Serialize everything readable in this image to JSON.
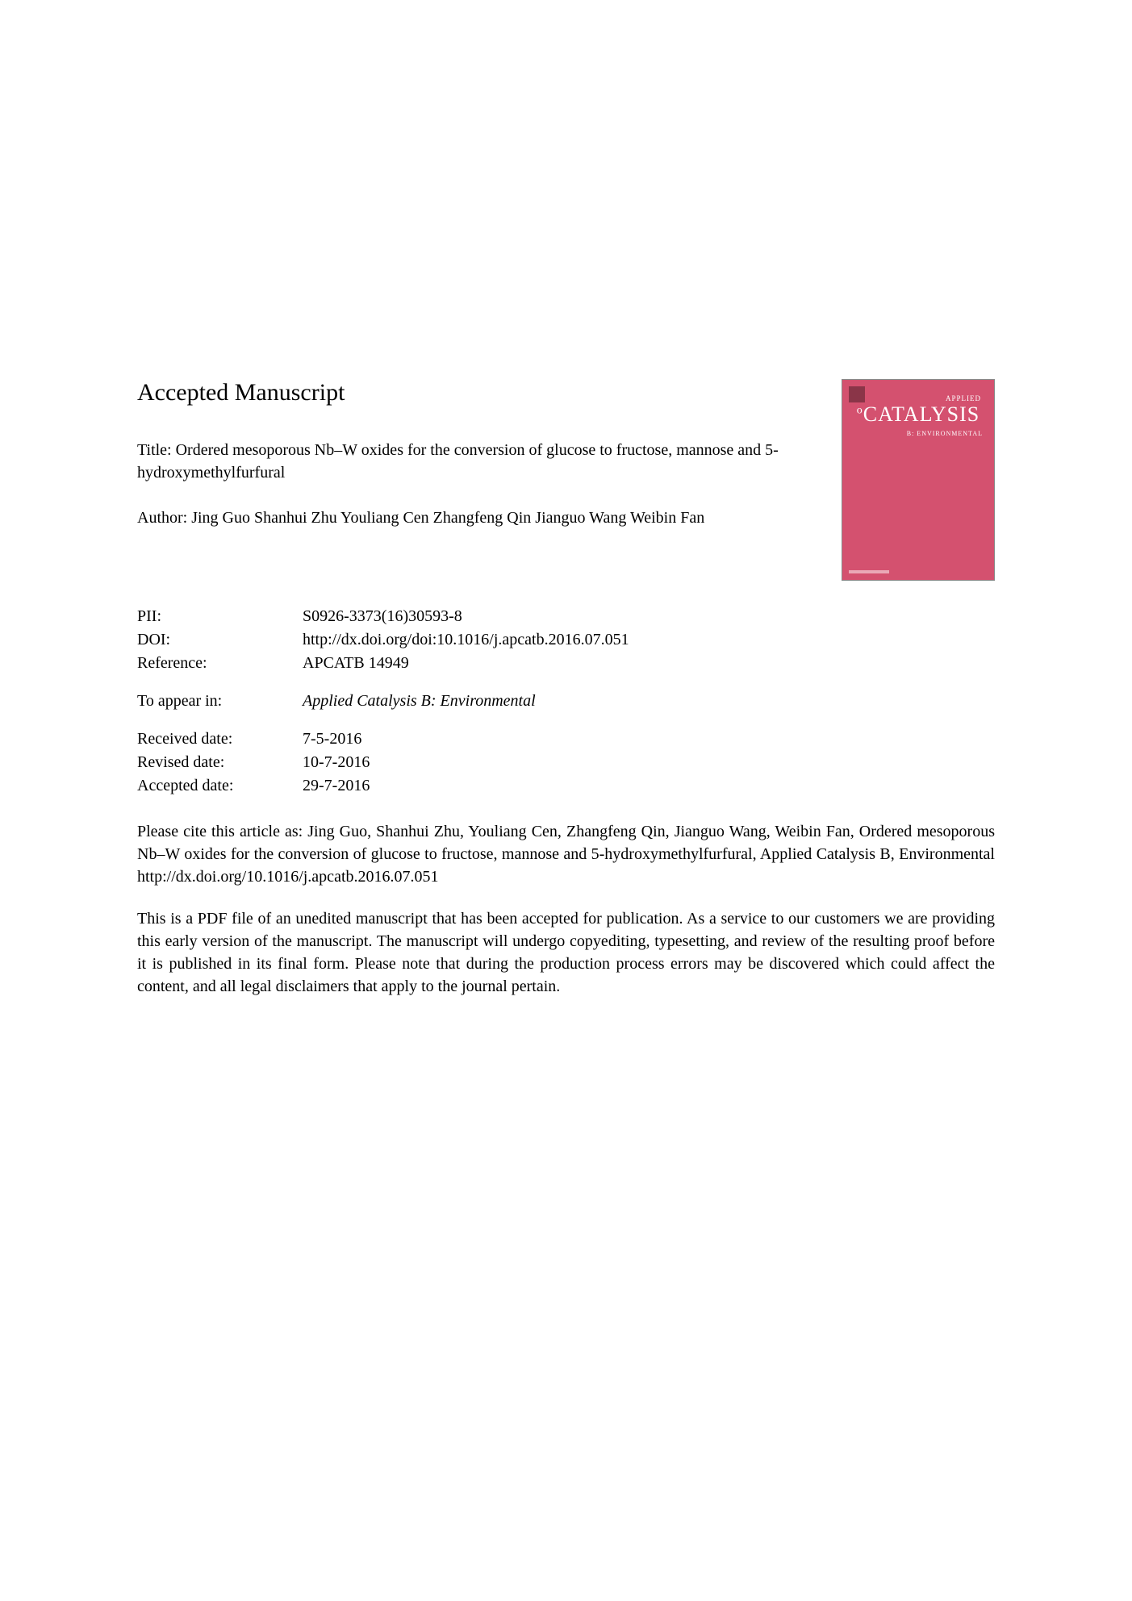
{
  "section_heading": "Accepted Manuscript",
  "title_label": "Title: Ordered mesoporous Nb–W oxides for the conversion of glucose to fructose, mannose and 5-hydroxymethylfurfural",
  "author_label": "Author: Jing Guo Shanhui Zhu Youliang Cen Zhangfeng Qin Jianguo Wang Weibin Fan",
  "journal_cover": {
    "applied": "APPLIED",
    "title_prefix": "o",
    "title": "CATALYSIS",
    "subtitle": "B: ENVIRONMENTAL",
    "bg_color": "#d4516f"
  },
  "meta": {
    "pii_label": "PII:",
    "pii_value": "S0926-3373(16)30593-8",
    "doi_label": "DOI:",
    "doi_value": "http://dx.doi.org/doi:10.1016/j.apcatb.2016.07.051",
    "ref_label": "Reference:",
    "ref_value": "APCATB 14949",
    "appear_label": "To appear in:",
    "appear_value": "Applied Catalysis B: Environmental",
    "received_label": "Received date:",
    "received_value": "7-5-2016",
    "revised_label": "Revised date:",
    "revised_value": "10-7-2016",
    "accepted_label": "Accepted date:",
    "accepted_value": "29-7-2016"
  },
  "citation": "Please cite this article as: Jing Guo, Shanhui Zhu, Youliang Cen, Zhangfeng Qin, Jianguo Wang, Weibin Fan, Ordered mesoporous Nb–W oxides for the conversion of glucose to fructose, mannose and 5-hydroxymethylfurfural, Applied Catalysis B, Environmental http://dx.doi.org/10.1016/j.apcatb.2016.07.051",
  "disclaimer": "This is a PDF file of an unedited manuscript that has been accepted for publication. As a service to our customers we are providing this early version of the manuscript. The manuscript will undergo copyediting, typesetting, and review of the resulting proof before it is published in its final form. Please note that during the production process errors may be discovered which could affect the content, and all legal disclaimers that apply to the journal pertain."
}
